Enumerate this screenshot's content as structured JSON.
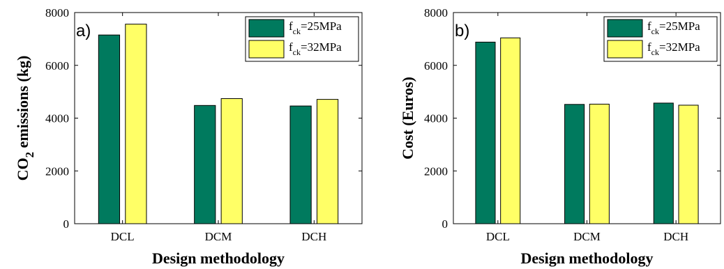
{
  "chart_data": [
    {
      "type": "bar",
      "panel_label": "a)",
      "categories": [
        "DCL",
        "DCM",
        "DCH"
      ],
      "series": [
        {
          "name_main": "f",
          "name_sub": "ck",
          "name_rest": "=25MPa",
          "color": "#007a5e",
          "values": [
            7150,
            4480,
            4460
          ]
        },
        {
          "name_main": "f",
          "name_sub": "ck",
          "name_rest": "=32MPa",
          "color": "#ffff66",
          "values": [
            7560,
            4740,
            4710
          ]
        }
      ],
      "xlabel": "Design methodology",
      "ylabel_main": "CO",
      "ylabel_sub": "2",
      "ylabel_rest": " emissions (kg)",
      "ylim": [
        0,
        8000
      ],
      "yticks": [
        "0",
        "2000",
        "4000",
        "6000",
        "8000"
      ],
      "legend_position": "top-right",
      "grid": false
    },
    {
      "type": "bar",
      "panel_label": "b)",
      "categories": [
        "DCL",
        "DCM",
        "DCH"
      ],
      "series": [
        {
          "name_main": "f",
          "name_sub": "ck",
          "name_rest": "=25MPa",
          "color": "#007a5e",
          "values": [
            6880,
            4520,
            4570
          ]
        },
        {
          "name_main": "f",
          "name_sub": "ck",
          "name_rest": "=32MPa",
          "color": "#ffff66",
          "values": [
            7040,
            4530,
            4490
          ]
        }
      ],
      "xlabel": "Design methodology",
      "ylabel_main": "Cost (Euros)",
      "ylabel_sub": "",
      "ylabel_rest": "",
      "ylim": [
        0,
        8000
      ],
      "yticks": [
        "0",
        "2000",
        "4000",
        "6000",
        "8000"
      ],
      "legend_position": "top-right",
      "grid": false
    }
  ]
}
